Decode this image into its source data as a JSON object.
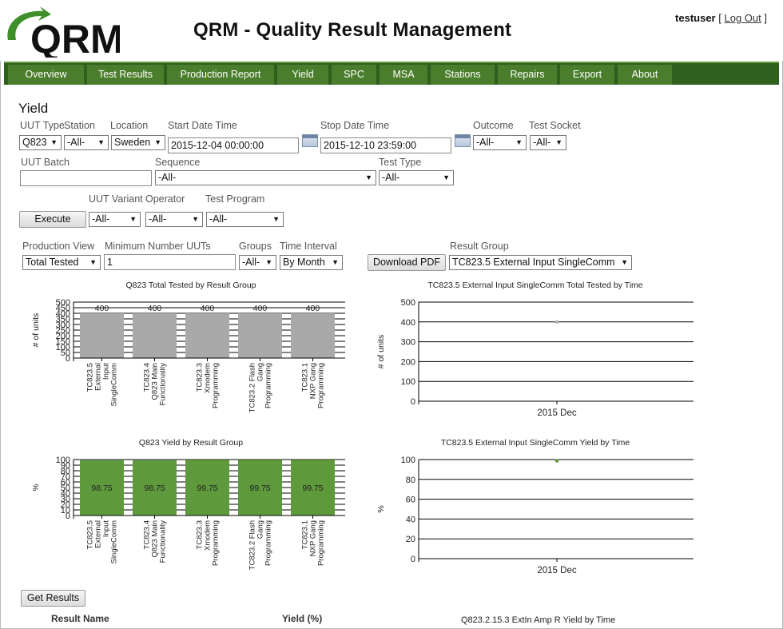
{
  "header": {
    "logo_text": "QRM",
    "title": "QRM - Quality Result Management",
    "username": "testuser",
    "logout_label": "Log Out"
  },
  "nav": {
    "items": [
      {
        "label": "Overview"
      },
      {
        "label": "Test Results"
      },
      {
        "label": "Production Report"
      },
      {
        "label": "Yield"
      },
      {
        "label": "SPC"
      },
      {
        "label": "MSA"
      },
      {
        "label": "Stations"
      },
      {
        "label": "Repairs"
      },
      {
        "label": "Export"
      },
      {
        "label": "About"
      }
    ]
  },
  "page": {
    "title": "Yield"
  },
  "filters": {
    "uut_type_label": "UUT Type",
    "uut_type_value": "Q823",
    "station_label": "Station",
    "station_value": "-All-",
    "location_label": "Location",
    "location_value": "Sweden",
    "start_label": "Start Date Time",
    "start_value": "2015-12-04 00:00:00",
    "stop_label": "Stop Date Time",
    "stop_value": "2015-12-10 23:59:00",
    "outcome_label": "Outcome",
    "outcome_value": "-All-",
    "socket_label": "Test Socket",
    "socket_value": "-All-",
    "batch_label": "UUT Batch",
    "batch_value": "",
    "sequence_label": "Sequence",
    "sequence_value": "-All-",
    "testtype_label": "Test Type",
    "testtype_value": "-All-",
    "variant_label": "UUT Variant",
    "variant_value": "-All-",
    "operator_label": "Operator",
    "operator_value": "-All-",
    "program_label": "Test Program",
    "program_value": "-All-",
    "execute_label": "Execute"
  },
  "view": {
    "production_view_label": "Production View",
    "production_view_value": "Total Tested",
    "min_uuts_label": "Minimum Number UUTs",
    "min_uuts_value": "1",
    "groups_label": "Groups",
    "groups_value": "-All-",
    "interval_label": "Time Interval",
    "interval_value": "By Month",
    "download_label": "Download PDF",
    "result_group_label": "Result Group",
    "result_group_value": "TC823.5 External Input SingleComm"
  },
  "chart_data": [
    {
      "type": "bar",
      "title": "Q823 Total Tested by Result Group",
      "ylabel": "# of units",
      "ylim": [
        0,
        500
      ],
      "yticks": [
        "0",
        "50",
        "100",
        "150",
        "200",
        "250",
        "300",
        "350",
        "400",
        "450",
        "500"
      ],
      "categories": [
        [
          "TC823.5",
          "External",
          "Input",
          "SingleComm"
        ],
        [
          "TC823.4",
          "Q823 Main",
          "Functionality"
        ],
        [
          "TC823.3",
          "Xmodem",
          "Programming"
        ],
        [
          "TC823.2 Flash",
          "Gang",
          "Programming"
        ],
        [
          "TC823.1",
          "NXP Gang",
          "Programming"
        ]
      ],
      "values": [
        400,
        400,
        400,
        400,
        400
      ],
      "labels": [
        "400",
        "400",
        "400",
        "400",
        "400"
      ],
      "color": "#a9a9a9"
    },
    {
      "type": "line",
      "title": "TC823.5 External Input SingleComm Total Tested by Time",
      "ylabel": "# of units",
      "ylim": [
        0,
        500
      ],
      "yticks": [
        "0",
        "100",
        "200",
        "300",
        "400",
        "500"
      ],
      "x": [
        "2015 Dec"
      ],
      "values": [
        400
      ],
      "color": "#b0b0b0"
    },
    {
      "type": "bar",
      "title": "Q823 Yield by Result Group",
      "ylabel": "%",
      "ylim": [
        0,
        100
      ],
      "yticks": [
        "0",
        "10",
        "20",
        "30",
        "40",
        "50",
        "60",
        "70",
        "80",
        "90",
        "100"
      ],
      "categories": [
        [
          "TC823.5",
          "External",
          "Input",
          "SingleComm"
        ],
        [
          "TC823.4",
          "Q823 Main",
          "Functionality"
        ],
        [
          "TC823.3",
          "Xmodem",
          "Programming"
        ],
        [
          "TC823.2 Flash",
          "Gang",
          "Programming"
        ],
        [
          "TC823.1",
          "NXP Gang",
          "Programming"
        ]
      ],
      "values": [
        98.75,
        98.75,
        99.75,
        99.75,
        99.75
      ],
      "labels": [
        "98.75",
        "98.75",
        "99.75",
        "99.75",
        "99.75"
      ],
      "color": "#5e9a3c"
    },
    {
      "type": "line",
      "title": "TC823.5 External Input SingleComm Yield by Time",
      "ylabel": "%",
      "ylim": [
        0,
        100
      ],
      "yticks": [
        "0",
        "20",
        "40",
        "60",
        "80",
        "100"
      ],
      "x": [
        "2015 Dec"
      ],
      "values": [
        98.75
      ],
      "color": "#5e9a3c"
    }
  ],
  "results": {
    "get_results_label": "Get Results",
    "col_name": "Result Name",
    "col_yield": "Yield (%)",
    "next_chart_title": "Q823.2.15.3 ExtIn Amp R Yield by Time"
  }
}
